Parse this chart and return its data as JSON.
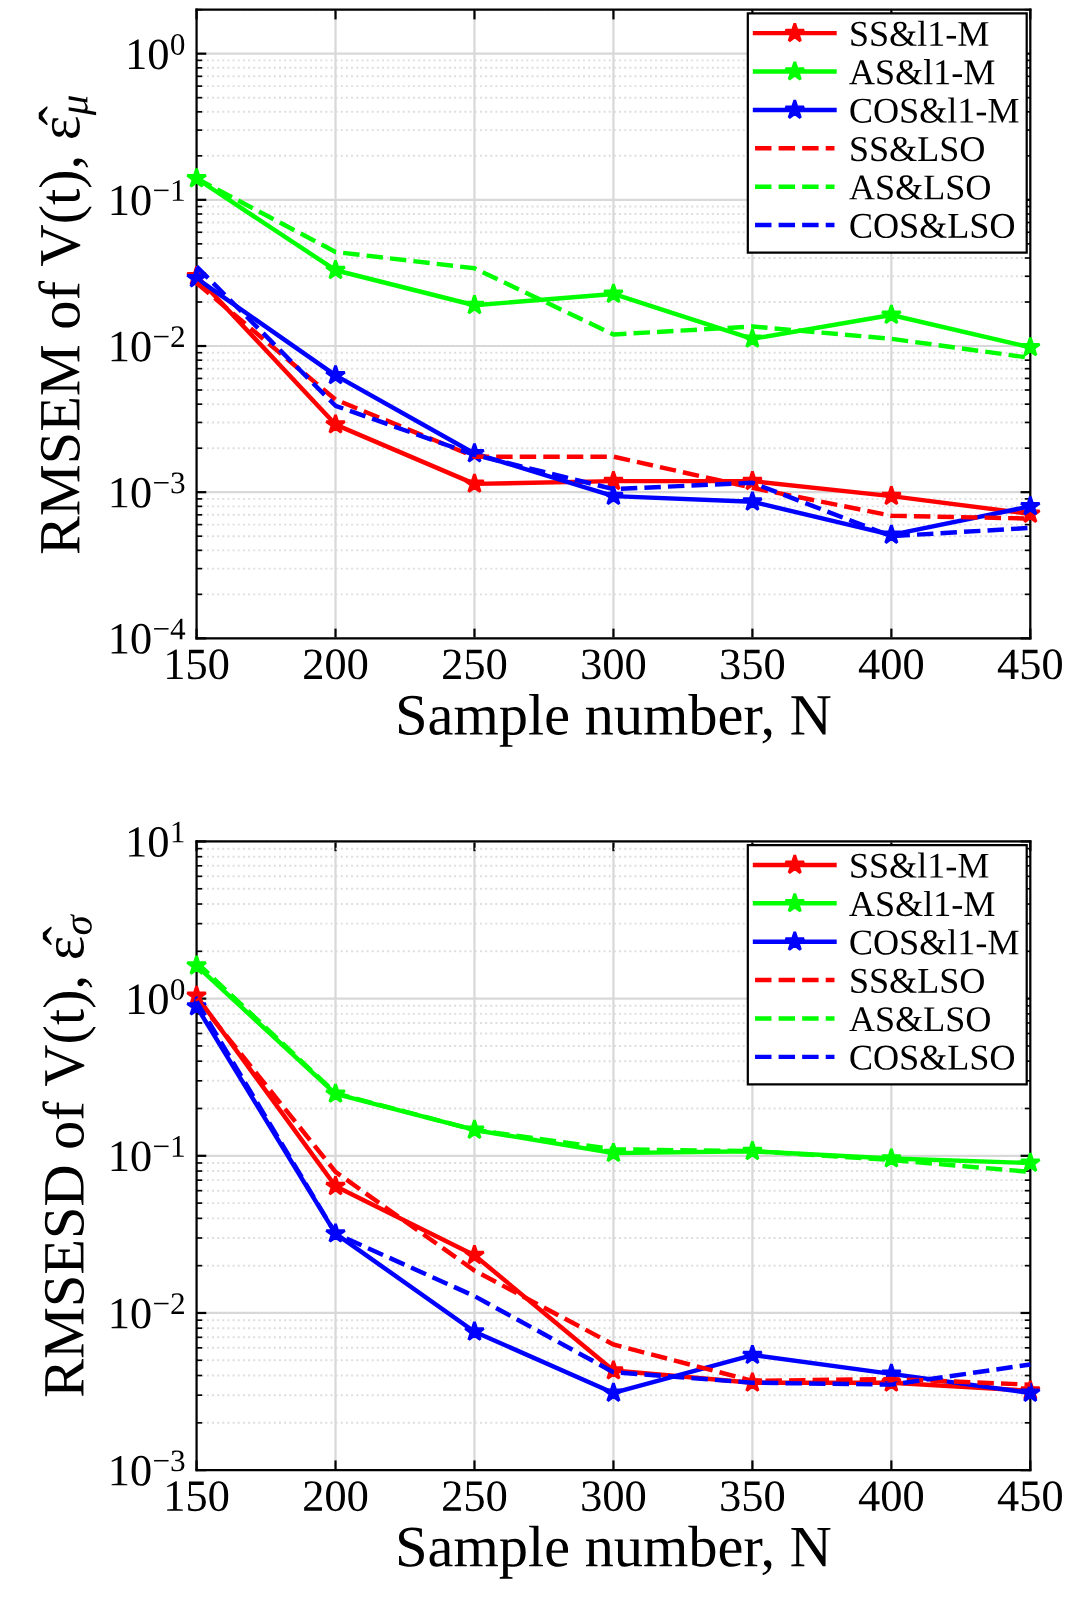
{
  "chart_data": [
    {
      "type": "line",
      "xlabel": "Sample number, N",
      "ylabel": "RMSEM of V(t), ε̂$_{μ}$",
      "log": "y",
      "grid": true,
      "legend": "top right",
      "x": [
        150,
        200,
        250,
        300,
        350,
        400,
        450
      ],
      "xlim": [
        150,
        450
      ],
      "xticks": [
        150,
        200,
        250,
        300,
        350,
        400,
        450
      ],
      "ylim": [
        0.0001,
        2
      ],
      "yticks": [
        {
          "value": 0.0001,
          "label": "10$^{−4}$"
        },
        {
          "value": 0.001,
          "label": "10$^{−3}$"
        },
        {
          "value": 0.01,
          "label": "10$^{−2}$"
        },
        {
          "value": 0.1,
          "label": "10$^{−1}$"
        },
        {
          "value": 1,
          "label": "10$^{0}$"
        }
      ],
      "series": [
        {
          "name": "SS&l1-M",
          "color": "#ff0000",
          "marker": "star",
          "line_style": "solid",
          "values": [
            0.03,
            0.0029,
            0.00114,
            0.00119,
            0.00119,
            0.00094,
            0.00071
          ]
        },
        {
          "name": "AS&l1-M",
          "color": "#00ff00",
          "marker": "star",
          "line_style": "solid",
          "values": [
            0.14,
            0.033,
            0.019,
            0.0227,
            0.0112,
            0.0163,
            0.0098
          ]
        },
        {
          "name": "COS&l1-M",
          "color": "#0000ff",
          "marker": "star",
          "line_style": "solid",
          "values": [
            0.029,
            0.0063,
            0.00184,
            0.00094,
            0.00086,
            0.00051,
            0.0008
          ]
        },
        {
          "name": "SS&LSO",
          "color": "#ff0000",
          "marker": "none",
          "line_style": "dashed",
          "values": [
            0.027,
            0.0043,
            0.00175,
            0.00175,
            0.00107,
            0.00069,
            0.00066
          ]
        },
        {
          "name": "AS&LSO",
          "color": "#00ff00",
          "marker": "none",
          "line_style": "dashed",
          "values": [
            0.14,
            0.044,
            0.034,
            0.012,
            0.0136,
            0.0112,
            0.0083
          ]
        },
        {
          "name": "COS&LSO",
          "color": "#0000ff",
          "marker": "none",
          "line_style": "dashed",
          "values": [
            0.035,
            0.0039,
            0.0018,
            0.00105,
            0.00116,
            0.0005,
            0.00057
          ]
        }
      ]
    },
    {
      "type": "line",
      "xlabel": "Sample number, N",
      "ylabel": "RMSESD of V(t), ε̂$_{σ}$",
      "log": "y",
      "grid": true,
      "legend": "top right",
      "x": [
        150,
        200,
        250,
        300,
        350,
        400,
        450
      ],
      "xlim": [
        150,
        450
      ],
      "xticks": [
        150,
        200,
        250,
        300,
        350,
        400,
        450
      ],
      "ylim": [
        0.001,
        10
      ],
      "yticks": [
        {
          "value": 0.001,
          "label": "10$^{−3}$"
        },
        {
          "value": 0.01,
          "label": "10$^{−2}$"
        },
        {
          "value": 0.1,
          "label": "10$^{−1}$"
        },
        {
          "value": 1,
          "label": "10$^{0}$"
        },
        {
          "value": 10,
          "label": "10$^{1}$"
        }
      ],
      "series": [
        {
          "name": "SS&l1-M",
          "color": "#ff0000",
          "marker": "star",
          "line_style": "solid",
          "values": [
            1.04,
            0.064,
            0.0233,
            0.0043,
            0.0036,
            0.0036,
            0.0032
          ]
        },
        {
          "name": "AS&l1-M",
          "color": "#00ff00",
          "marker": "star",
          "line_style": "solid",
          "values": [
            1.62,
            0.248,
            0.146,
            0.104,
            0.107,
            0.096,
            0.09
          ]
        },
        {
          "name": "COS&l1-M",
          "color": "#0000ff",
          "marker": "star",
          "line_style": "solid",
          "values": [
            0.89,
            0.032,
            0.0076,
            0.0031,
            0.0054,
            0.0041,
            0.0031
          ]
        },
        {
          "name": "SS&LSO",
          "color": "#ff0000",
          "marker": "none",
          "line_style": "dashed",
          "values": [
            1.0,
            0.079,
            0.0186,
            0.0063,
            0.0037,
            0.0038,
            0.0035
          ]
        },
        {
          "name": "AS&LSO",
          "color": "#00ff00",
          "marker": "none",
          "line_style": "dashed",
          "values": [
            1.7,
            0.25,
            0.146,
            0.11,
            0.107,
            0.094,
            0.079
          ]
        },
        {
          "name": "COS&LSO",
          "color": "#0000ff",
          "marker": "none",
          "line_style": "dashed",
          "values": [
            0.96,
            0.032,
            0.0128,
            0.0042,
            0.0036,
            0.0035,
            0.0047
          ]
        }
      ]
    }
  ]
}
